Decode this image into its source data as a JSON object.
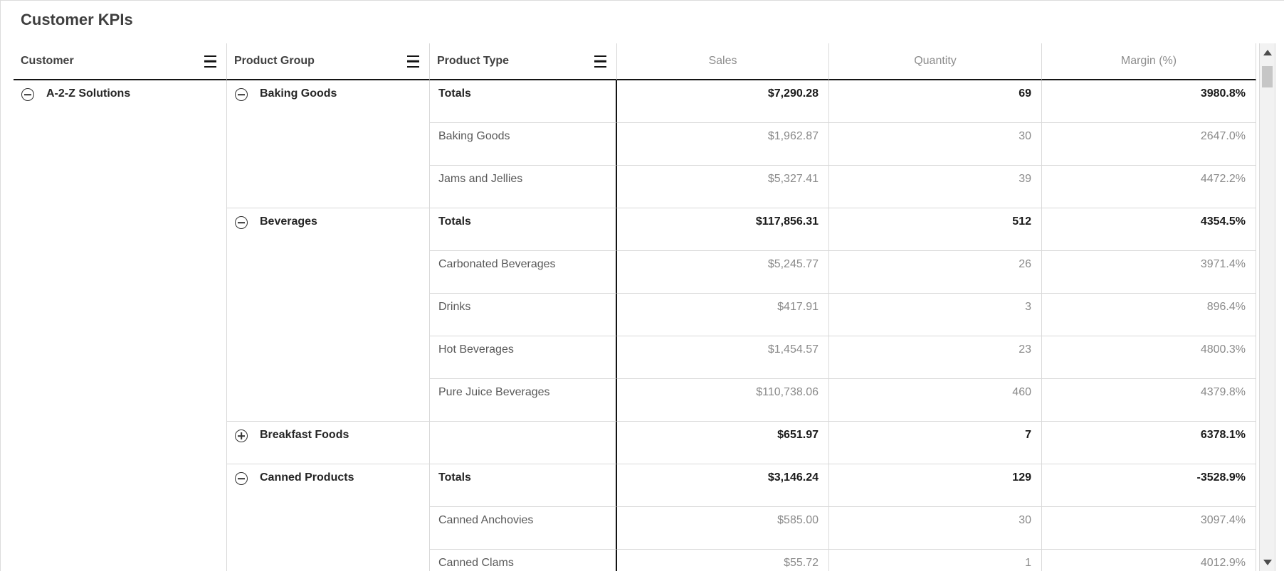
{
  "title": "Customer KPIs",
  "colors": {
    "title_text": "#3f3f3f",
    "header_dim_text": "#404040",
    "header_measure_text": "#8d8d8d",
    "total_text": "#1a1a1a",
    "detail_text": "#595959",
    "detail_number_text": "#8a8a8a",
    "border_light": "#d9d9d9",
    "border_dark": "#141414",
    "scrollbar_thumb": "#c6c6c6"
  },
  "table": {
    "dimension_headers": [
      {
        "label": "Customer",
        "menu_icon": "hamburger-icon"
      },
      {
        "label": "Product Group",
        "menu_icon": "hamburger-icon"
      },
      {
        "label": "Product Type",
        "menu_icon": "hamburger-icon"
      }
    ],
    "measure_headers": [
      "Sales",
      "Quantity",
      "Margin (%)"
    ],
    "customer": {
      "label": "A-2-Z Solutions",
      "state": "expanded"
    },
    "groups": [
      {
        "label": "Baking Goods",
        "state": "expanded",
        "rows": [
          {
            "product_type": "Totals",
            "sales": "$7,290.28",
            "quantity": "69",
            "margin": "3980.8%",
            "is_total": true
          },
          {
            "product_type": "Baking Goods",
            "sales": "$1,962.87",
            "quantity": "30",
            "margin": "2647.0%",
            "is_total": false
          },
          {
            "product_type": "Jams and Jellies",
            "sales": "$5,327.41",
            "quantity": "39",
            "margin": "4472.2%",
            "is_total": false
          }
        ]
      },
      {
        "label": "Beverages",
        "state": "expanded",
        "rows": [
          {
            "product_type": "Totals",
            "sales": "$117,856.31",
            "quantity": "512",
            "margin": "4354.5%",
            "is_total": true
          },
          {
            "product_type": "Carbonated Beverages",
            "sales": "$5,245.77",
            "quantity": "26",
            "margin": "3971.4%",
            "is_total": false
          },
          {
            "product_type": "Drinks",
            "sales": "$417.91",
            "quantity": "3",
            "margin": "896.4%",
            "is_total": false
          },
          {
            "product_type": "Hot Beverages",
            "sales": "$1,454.57",
            "quantity": "23",
            "margin": "4800.3%",
            "is_total": false
          },
          {
            "product_type": "Pure Juice Beverages",
            "sales": "$110,738.06",
            "quantity": "460",
            "margin": "4379.8%",
            "is_total": false
          }
        ]
      },
      {
        "label": "Breakfast Foods",
        "state": "collapsed",
        "rows": [
          {
            "product_type": "",
            "sales": "$651.97",
            "quantity": "7",
            "margin": "6378.1%",
            "is_total": true
          }
        ]
      },
      {
        "label": "Canned Products",
        "state": "expanded",
        "rows": [
          {
            "product_type": "Totals",
            "sales": "$3,146.24",
            "quantity": "129",
            "margin": "-3528.9%",
            "is_total": true
          },
          {
            "product_type": "Canned Anchovies",
            "sales": "$585.00",
            "quantity": "30",
            "margin": "3097.4%",
            "is_total": false
          },
          {
            "product_type": "Canned Clams",
            "sales": "$55.72",
            "quantity": "1",
            "margin": "4012.9%",
            "is_total": false
          }
        ]
      }
    ]
  },
  "scrollbar": {
    "orientation": "vertical",
    "thumb_position": "top"
  }
}
